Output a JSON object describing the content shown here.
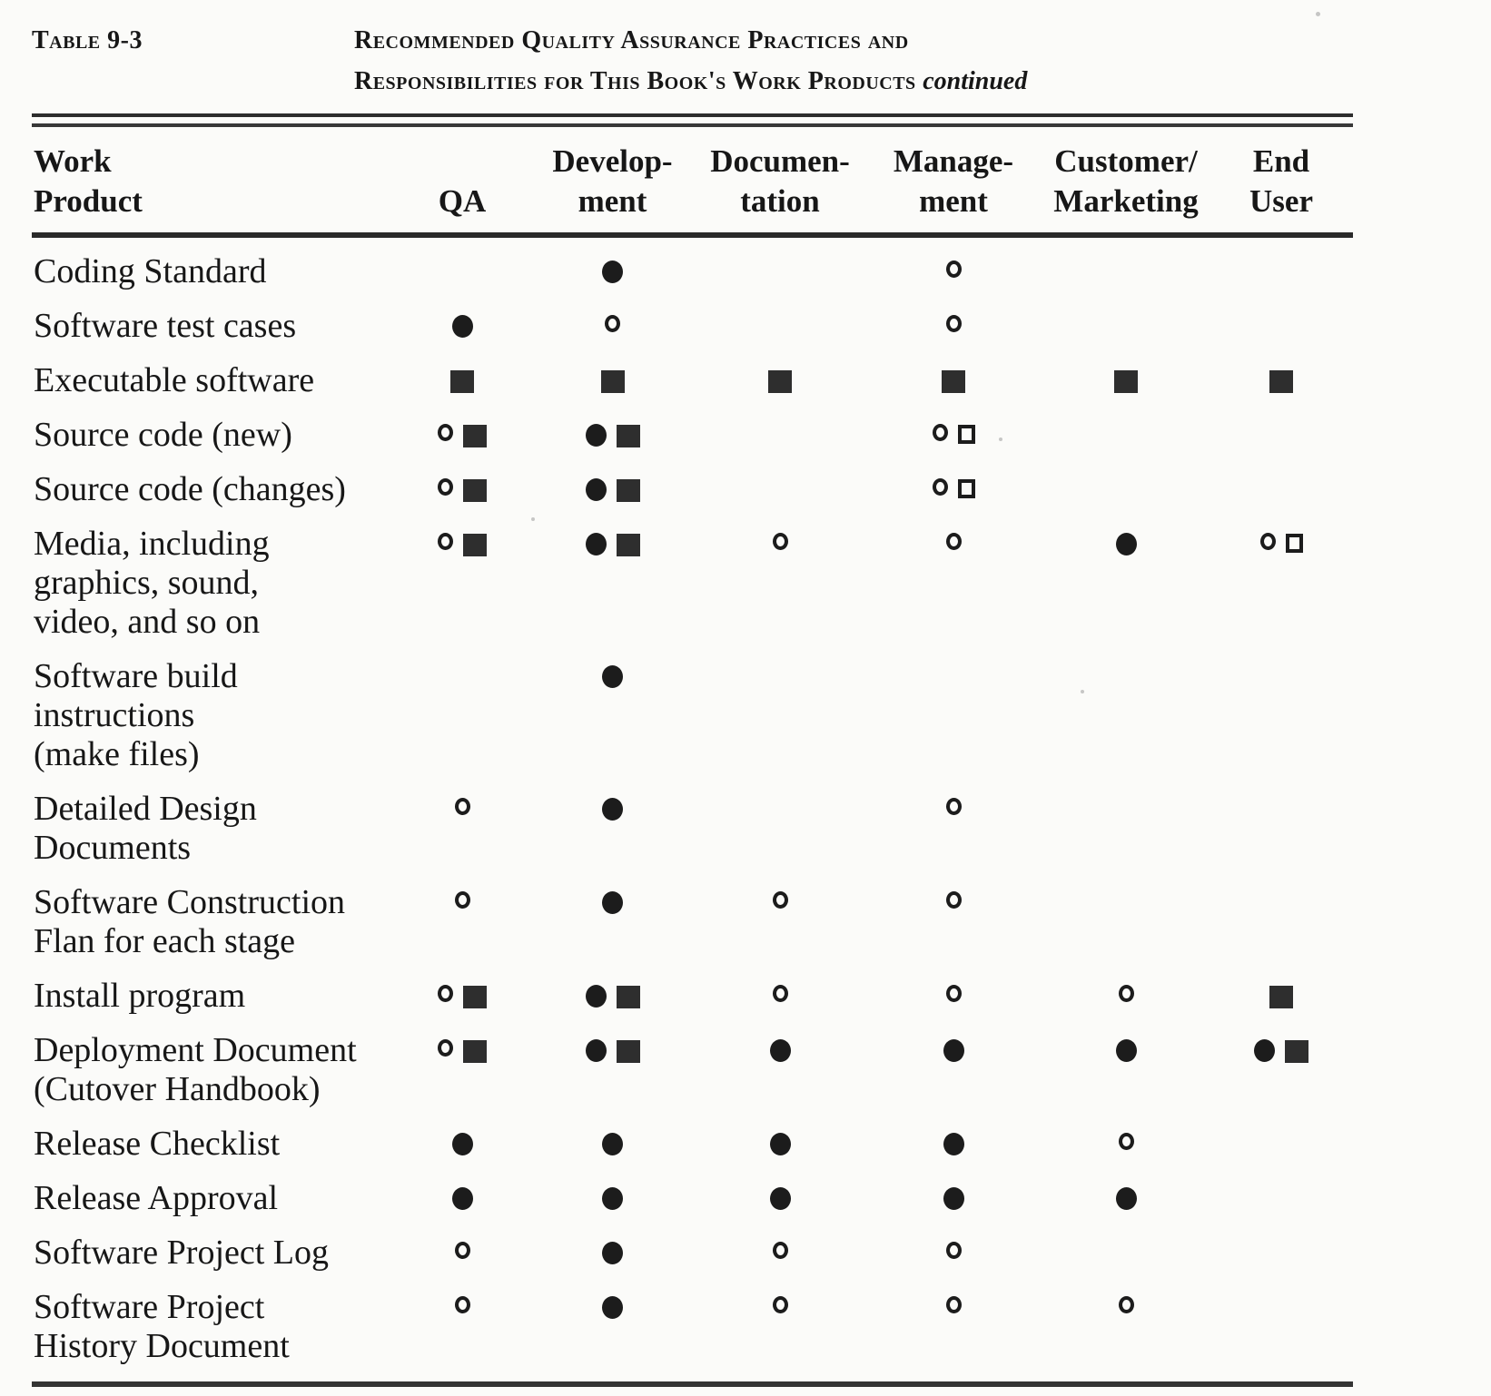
{
  "table": {
    "tag": "Table 9-3",
    "title_line1": "Recommended Quality Assurance Practices and",
    "title_line2": "Responsibilities for This Book's Work Products",
    "title_continued": "continued",
    "header": {
      "work_product_lines": [
        "Work",
        "Product"
      ],
      "columns": [
        {
          "id": "qa",
          "lines": [
            "QA"
          ]
        },
        {
          "id": "development",
          "lines": [
            "Develop-",
            "ment"
          ]
        },
        {
          "id": "documentation",
          "lines": [
            "Documen-",
            "tation"
          ]
        },
        {
          "id": "management",
          "lines": [
            "Manage-",
            "ment"
          ]
        },
        {
          "id": "customer-marketing",
          "lines": [
            "Customer/",
            "Marketing"
          ]
        },
        {
          "id": "end-user",
          "lines": [
            "End",
            "User"
          ]
        }
      ]
    },
    "symbol_names": [
      "filled-circle",
      "open-circle",
      "filled-square",
      "open-square"
    ],
    "rows": [
      {
        "label_lines": [
          "Coding Standard"
        ],
        "cells": [
          [],
          [
            "filled-circle"
          ],
          [],
          [
            "open-circle"
          ],
          [],
          []
        ]
      },
      {
        "label_lines": [
          "Software test cases"
        ],
        "cells": [
          [
            "filled-circle"
          ],
          [
            "open-circle"
          ],
          [],
          [
            "open-circle"
          ],
          [],
          []
        ]
      },
      {
        "label_lines": [
          "Executable software"
        ],
        "cells": [
          [
            "filled-square"
          ],
          [
            "filled-square"
          ],
          [
            "filled-square"
          ],
          [
            "filled-square"
          ],
          [
            "filled-square"
          ],
          [
            "filled-square"
          ]
        ]
      },
      {
        "label_lines": [
          "Source code (new)"
        ],
        "cells": [
          [
            "open-circle",
            "filled-square"
          ],
          [
            "filled-circle",
            "filled-square"
          ],
          [],
          [
            "open-circle",
            "open-square"
          ],
          [],
          []
        ]
      },
      {
        "label_lines": [
          "Source code (changes)"
        ],
        "cells": [
          [
            "open-circle",
            "filled-square"
          ],
          [
            "filled-circle",
            "filled-square"
          ],
          [],
          [
            "open-circle",
            "open-square"
          ],
          [],
          []
        ]
      },
      {
        "label_lines": [
          "Media, including",
          "graphics, sound,",
          "video, and so on"
        ],
        "cells": [
          [
            "open-circle",
            "filled-square"
          ],
          [
            "filled-circle",
            "filled-square"
          ],
          [
            "open-circle"
          ],
          [
            "open-circle"
          ],
          [
            "filled-circle"
          ],
          [
            "open-circle",
            "open-square"
          ]
        ]
      },
      {
        "label_lines": [
          "Software build",
          "instructions",
          "(make files)"
        ],
        "cells": [
          [],
          [
            "filled-circle"
          ],
          [],
          [],
          [],
          []
        ]
      },
      {
        "label_lines": [
          "Detailed Design",
          "Documents"
        ],
        "cells": [
          [
            "open-circle"
          ],
          [
            "filled-circle"
          ],
          [],
          [
            "open-circle"
          ],
          [],
          []
        ]
      },
      {
        "label_lines": [
          "Software  Construction",
          "Flan for each stage"
        ],
        "cells": [
          [
            "open-circle"
          ],
          [
            "filled-circle"
          ],
          [
            "open-circle"
          ],
          [
            "open-circle"
          ],
          [],
          []
        ]
      },
      {
        "label_lines": [
          "Install program"
        ],
        "cells": [
          [
            "open-circle",
            "filled-square"
          ],
          [
            "filled-circle",
            "filled-square"
          ],
          [
            "open-circle"
          ],
          [
            "open-circle"
          ],
          [
            "open-circle"
          ],
          [
            "filled-square"
          ]
        ]
      },
      {
        "label_lines": [
          "Deployment Document",
          "(Cutover  Handbook)"
        ],
        "cells": [
          [
            "open-circle",
            "filled-square"
          ],
          [
            "filled-circle",
            "filled-square"
          ],
          [
            "filled-circle"
          ],
          [
            "filled-circle"
          ],
          [
            "filled-circle"
          ],
          [
            "filled-circle",
            "filled-square"
          ]
        ]
      },
      {
        "label_lines": [
          "Release  Checklist"
        ],
        "cells": [
          [
            "filled-circle"
          ],
          [
            "filled-circle"
          ],
          [
            "filled-circle"
          ],
          [
            "filled-circle"
          ],
          [
            "open-circle"
          ],
          []
        ]
      },
      {
        "label_lines": [
          "Release  Approval"
        ],
        "cells": [
          [
            "filled-circle"
          ],
          [
            "filled-circle"
          ],
          [
            "filled-circle"
          ],
          [
            "filled-circle"
          ],
          [
            "filled-circle"
          ],
          []
        ]
      },
      {
        "label_lines": [
          "Software Project Log"
        ],
        "cells": [
          [
            "open-circle"
          ],
          [
            "filled-circle"
          ],
          [
            "open-circle"
          ],
          [
            "open-circle"
          ],
          [],
          []
        ]
      },
      {
        "label_lines": [
          "Software Project",
          "History Document"
        ],
        "cells": [
          [
            "open-circle"
          ],
          [
            "filled-circle"
          ],
          [
            "open-circle"
          ],
          [
            "open-circle"
          ],
          [
            "open-circle"
          ],
          []
        ]
      }
    ],
    "ink_color": "#1c1c1c",
    "paper_color": "#fbfbf9"
  }
}
